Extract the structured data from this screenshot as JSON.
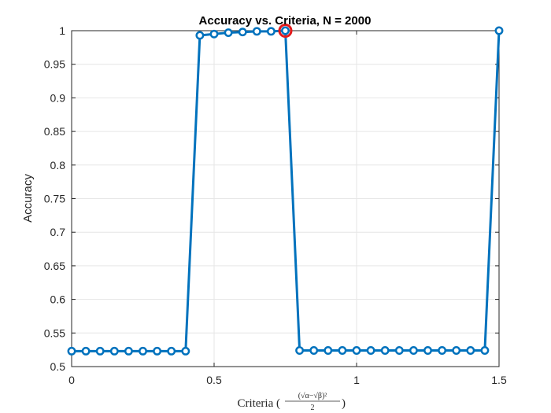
{
  "chart_data": {
    "type": "line",
    "title": "Accuracy vs. Criteria, N = 2000",
    "ylabel": "Accuracy",
    "xlabel": {
      "prefix": "Criteria (",
      "numerator": "(√α−√β)²",
      "denominator": "2",
      "suffix": ")"
    },
    "xlim": [
      0,
      1.5
    ],
    "ylim": [
      0.5,
      1
    ],
    "xticks": [
      0,
      0.5,
      1,
      1.5
    ],
    "xtick_labels": [
      "0",
      "0.5",
      "1",
      "1.5"
    ],
    "yticks": [
      0.5,
      0.55,
      0.6,
      0.65,
      0.7,
      0.75,
      0.8,
      0.85,
      0.9,
      0.95,
      1
    ],
    "ytick_labels": [
      "0.5",
      "0.55",
      "0.6",
      "0.65",
      "0.7",
      "0.75",
      "0.8",
      "0.85",
      "0.9",
      "0.95",
      "1"
    ],
    "grid": true,
    "series": [
      {
        "x": [
          0,
          0.05,
          0.1,
          0.15,
          0.2,
          0.25,
          0.3,
          0.35,
          0.4,
          0.45,
          0.5,
          0.55,
          0.6,
          0.65,
          0.7,
          0.75,
          0.8,
          0.85,
          0.9,
          0.95,
          1.0,
          1.05,
          1.1,
          1.15,
          1.2,
          1.25,
          1.3,
          1.35,
          1.4,
          1.45,
          1.5
        ],
        "y": [
          0.523,
          0.523,
          0.523,
          0.523,
          0.523,
          0.523,
          0.523,
          0.523,
          0.523,
          0.993,
          0.995,
          0.997,
          0.998,
          0.999,
          0.999,
          1.0,
          0.524,
          0.524,
          0.524,
          0.524,
          0.524,
          0.524,
          0.524,
          0.524,
          0.524,
          0.524,
          0.524,
          0.524,
          0.524,
          0.524,
          1.0
        ],
        "color": "#0072bd",
        "marker": "circle"
      }
    ],
    "highlight": {
      "x": 0.75,
      "y": 1.0,
      "color": "#e31a1c",
      "marker": "circle"
    }
  }
}
